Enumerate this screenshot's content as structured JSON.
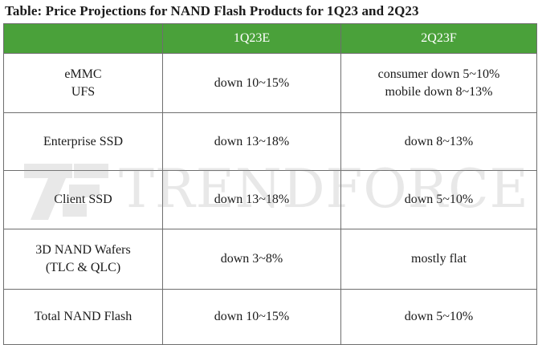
{
  "title": "Table: Price Projections for NAND Flash Products for 1Q23 and 2Q23",
  "watermark": {
    "text": "TRENDFORCE"
  },
  "table": {
    "headers": [
      "",
      "1Q23E",
      "2Q23F"
    ],
    "rows": [
      {
        "product": [
          "eMMC",
          "UFS"
        ],
        "q1": [
          "down 10~15%"
        ],
        "q2": [
          "consumer down 5~10%",
          "mobile down 8~13%"
        ]
      },
      {
        "product": [
          "Enterprise SSD"
        ],
        "q1": [
          "down 13~18%"
        ],
        "q2": [
          "down 8~13%"
        ]
      },
      {
        "product": [
          "Client SSD"
        ],
        "q1": [
          "down 13~18%"
        ],
        "q2": [
          "down 5~10%"
        ]
      },
      {
        "product": [
          "3D NAND Wafers",
          "(TLC & QLC)"
        ],
        "q1": [
          "down 3~8%"
        ],
        "q2": [
          "mostly flat"
        ]
      },
      {
        "product": [
          "Total NAND Flash"
        ],
        "q1": [
          "down 10~15%"
        ],
        "q2": [
          "down 5~10%"
        ]
      }
    ]
  },
  "colors": {
    "header_bg": "#4aa13a",
    "header_text": "#ffffff",
    "border": "#6e6e6e"
  }
}
